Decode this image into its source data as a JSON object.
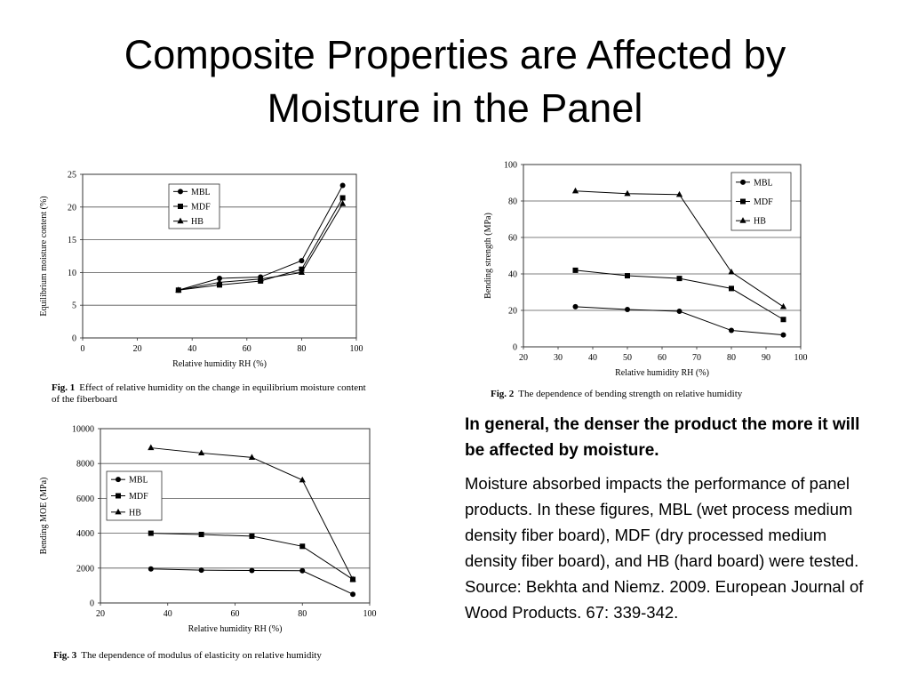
{
  "slide": {
    "title_line1": "Composite Properties are Affected by",
    "title_line2": "Moisture in the Panel",
    "emphasis": "In general, the denser the product the more it will be affected by moisture.",
    "body": "Moisture absorbed impacts the performance of panel products.  In these figures, MBL (wet process medium density fiber board), MDF (dry processed medium density fiber board), and HB (hard board) were tested.",
    "source": "Source: Bekhta and Niemz. 2009. European Journal of Wood Products. 67: 339-342."
  },
  "chart_data": [
    {
      "type": "line",
      "fig_label": "Fig. 1",
      "caption": "Effect of relative humidity on the change in equilibrium moisture content of the fiberboard",
      "xlabel": "Relative humidity RH (%)",
      "ylabel": "Equilibrium moisture content (%)",
      "xlim": [
        0,
        100
      ],
      "ylim": [
        0,
        25
      ],
      "xticks": [
        0,
        20,
        40,
        60,
        80,
        100
      ],
      "yticks": [
        0,
        5,
        10,
        15,
        20,
        25
      ],
      "grid": "horizontal",
      "legend_position": "top-left",
      "x": [
        35,
        50,
        65,
        80,
        95
      ],
      "series": [
        {
          "name": "MBL",
          "marker": "circle",
          "values": [
            7.3,
            9.1,
            9.3,
            11.8,
            23.3
          ]
        },
        {
          "name": "MDF",
          "marker": "square",
          "values": [
            7.3,
            8.1,
            8.7,
            10.5,
            21.4
          ]
        },
        {
          "name": "HB",
          "marker": "triangle",
          "values": [
            7.3,
            8.5,
            9.0,
            10.0,
            20.5
          ]
        }
      ]
    },
    {
      "type": "line",
      "fig_label": "Fig. 2",
      "caption": "The dependence of bending strength on relative humidity",
      "xlabel": "Relative humidity RH (%)",
      "ylabel": "Bending strength (MPa)",
      "xlim": [
        20,
        100
      ],
      "ylim": [
        0,
        100
      ],
      "xticks": [
        20,
        30,
        40,
        50,
        60,
        70,
        80,
        90,
        100
      ],
      "yticks": [
        0,
        20,
        40,
        60,
        80,
        100
      ],
      "grid": "horizontal",
      "legend_position": "top-right",
      "x": [
        35,
        50,
        65,
        80,
        95
      ],
      "series": [
        {
          "name": "MBL",
          "marker": "circle",
          "values": [
            22,
            20.5,
            19.5,
            9,
            6.5
          ]
        },
        {
          "name": "MDF",
          "marker": "square",
          "values": [
            42,
            39,
            37.5,
            32,
            15
          ]
        },
        {
          "name": "HB",
          "marker": "triangle",
          "values": [
            85.5,
            84,
            83.5,
            41,
            22
          ]
        }
      ]
    },
    {
      "type": "line",
      "fig_label": "Fig. 3",
      "caption": "The dependence of modulus of elasticity on relative humidity",
      "xlabel": "Relative humidity RH (%)",
      "ylabel": "Bending MOE (MPa)",
      "xlim": [
        20,
        100
      ],
      "ylim": [
        0,
        10000
      ],
      "xticks": [
        20,
        40,
        60,
        80,
        100
      ],
      "yticks": [
        0,
        2000,
        4000,
        6000,
        8000,
        10000
      ],
      "grid": "horizontal",
      "legend_position": "middle-left",
      "x": [
        35,
        50,
        65,
        80,
        95
      ],
      "series": [
        {
          "name": "MBL",
          "marker": "circle",
          "values": [
            1950,
            1880,
            1860,
            1850,
            500
          ]
        },
        {
          "name": "MDF",
          "marker": "square",
          "values": [
            4000,
            3930,
            3830,
            3250,
            1350
          ]
        },
        {
          "name": "HB",
          "marker": "triangle",
          "values": [
            8900,
            8600,
            8350,
            7050,
            1350
          ]
        }
      ]
    }
  ]
}
